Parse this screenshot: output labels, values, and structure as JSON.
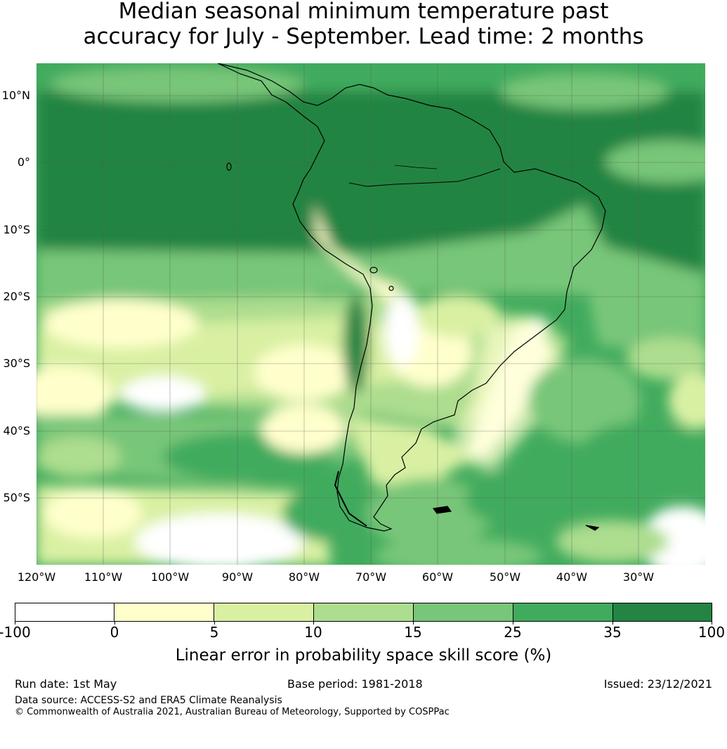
{
  "title_line1": "Median seasonal minimum temperature past",
  "title_line2": "accuracy for July - September. Lead time: 2 months",
  "map": {
    "lat_labels": [
      "10°N",
      "0°",
      "10°S",
      "20°S",
      "30°S",
      "40°S",
      "50°S"
    ],
    "lon_labels": [
      "120°W",
      "110°W",
      "100°W",
      "90°W",
      "80°W",
      "70°W",
      "60°W",
      "50°W",
      "40°W",
      "30°W"
    ],
    "gridlines": true,
    "coastline_color": "#000000"
  },
  "colorbar": {
    "ticks": [
      "-100",
      "0",
      "5",
      "10",
      "15",
      "25",
      "35",
      "100"
    ],
    "colors": [
      "#ffffff",
      "#ffffcc",
      "#d9f0a3",
      "#addd8e",
      "#78c679",
      "#41ab5d",
      "#238443"
    ],
    "label": "Linear error in probability space skill score (%)"
  },
  "footer": {
    "run_date": "Run date: 1st May",
    "base_period": "Base period: 1981-2018",
    "issued": "Issued: 23/12/2021",
    "data_source": "Data source: ACCESS-S2 and ERA5 Climate Reanalysis",
    "copyright": "© Commonwealth of Australia 2021, Australian Bureau of Meteorology, Supported by COSPPac"
  }
}
